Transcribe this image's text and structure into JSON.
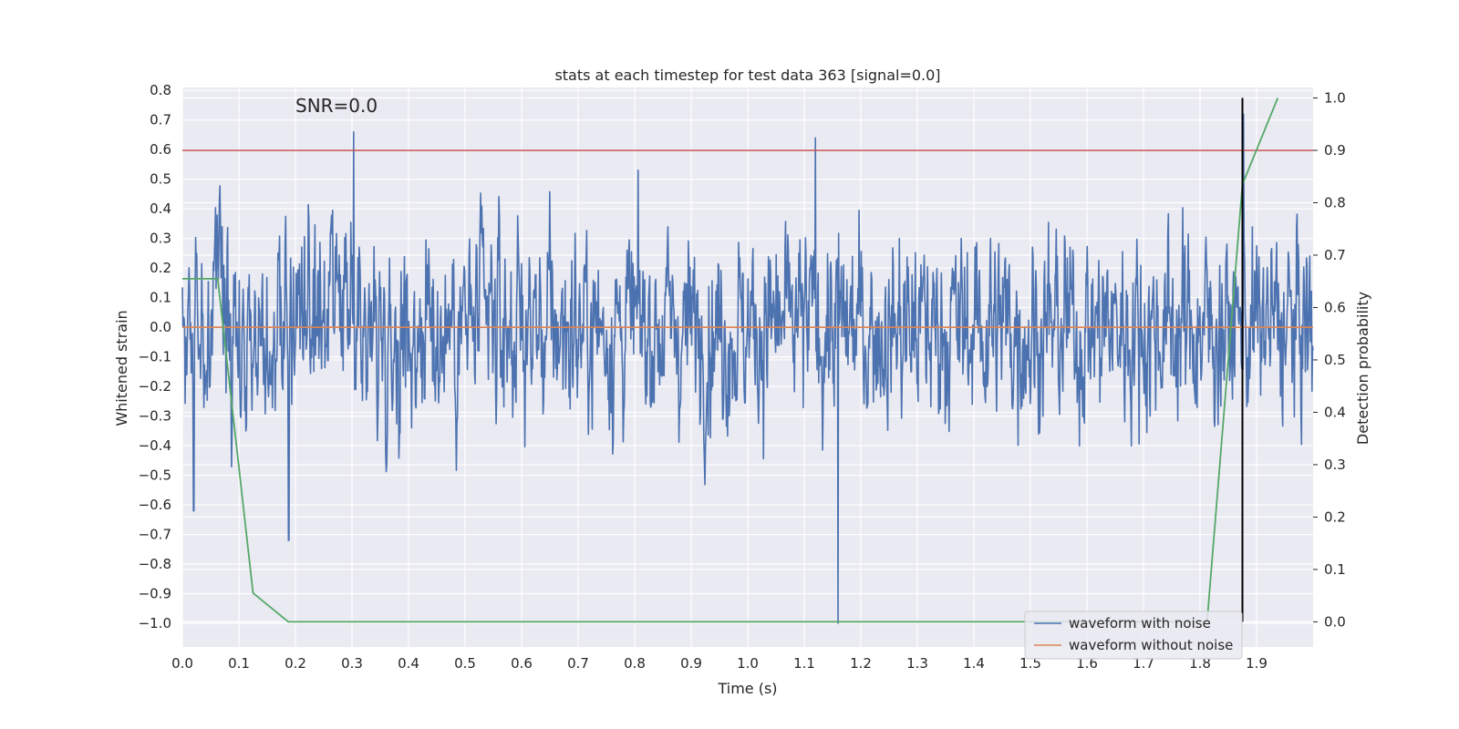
{
  "chart_data": {
    "type": "line",
    "title": "stats at each timestep for test data 363 [signal=0.0]",
    "annotation": "SNR=0.0",
    "xlabel": "Time (s)",
    "ylabel": "Whitened strain",
    "y2label": "Detection probability",
    "xlim": [
      0.0,
      2.0
    ],
    "ylim": [
      -1.08,
      0.81
    ],
    "y2lim": [
      -0.048,
      1.02
    ],
    "xticks": [
      0.0,
      0.1,
      0.2,
      0.3,
      0.4,
      0.5,
      0.6,
      0.7,
      0.8,
      0.9,
      1.0,
      1.1,
      1.2,
      1.3,
      1.4,
      1.5,
      1.6,
      1.7,
      1.8,
      1.9
    ],
    "xtick_labels": [
      "0.0",
      "0.1",
      "0.2",
      "0.3",
      "0.4",
      "0.5",
      "0.6",
      "0.7",
      "0.8",
      "0.9",
      "1.0",
      "1.1",
      "1.2",
      "1.3",
      "1.4",
      "1.5",
      "1.6",
      "1.7",
      "1.8",
      "1.9"
    ],
    "yticks": [
      0.8,
      0.7,
      0.6,
      0.5,
      0.4,
      0.3,
      0.2,
      0.1,
      0.0,
      -0.1,
      -0.2,
      -0.3,
      -0.4,
      -0.5,
      -0.6,
      -0.7,
      -0.8,
      -0.9,
      -1.0
    ],
    "ytick_labels": [
      "0.8",
      "0.7",
      "0.6",
      "0.5",
      "0.4",
      "0.3",
      "0.2",
      "0.1",
      "0.0",
      "−0.1",
      "−0.2",
      "−0.3",
      "−0.4",
      "−0.5",
      "−0.6",
      "−0.7",
      "−0.8",
      "−0.9",
      "−1.0"
    ],
    "y2ticks": [
      1.0,
      0.9,
      0.8,
      0.7,
      0.6,
      0.5,
      0.4,
      0.3,
      0.2,
      0.1,
      0.0
    ],
    "y2tick_labels": [
      "1.0",
      "0.9",
      "0.8",
      "0.7",
      "0.6",
      "0.5",
      "0.4",
      "0.3",
      "0.2",
      "0.1",
      "0.0"
    ],
    "grid": true,
    "legend_position": "lower-right",
    "series": [
      {
        "name": "waveform with noise",
        "color": "#4c72b0",
        "axis": "left",
        "kind": "noise",
        "x_range": [
          0.0,
          2.0
        ],
        "points": 2048,
        "y_min": -1.0,
        "y_max": 0.72,
        "spikes": [
          {
            "x": 1.16,
            "y": -1.0
          },
          {
            "x": 0.188,
            "y": -0.72
          },
          {
            "x": 0.303,
            "y": 0.66
          },
          {
            "x": 1.877,
            "y": 0.72
          },
          {
            "x": 1.12,
            "y": 0.64
          },
          {
            "x": 0.02,
            "y": -0.62
          }
        ]
      },
      {
        "name": "waveform without noise",
        "color": "#dd8452",
        "axis": "left",
        "x": [
          0.0,
          2.0
        ],
        "y": [
          0.0,
          0.0
        ]
      },
      {
        "name": "",
        "color": "#55a868",
        "axis": "right",
        "x": [
          0.0,
          0.0625,
          0.125,
          0.1875,
          1.8125,
          1.875,
          1.9375
        ],
        "y": [
          0.655,
          0.655,
          0.055,
          0.0,
          0.0,
          0.835,
          1.0
        ]
      }
    ],
    "threshold": {
      "axis": "right",
      "y": 0.9,
      "color": "#c44e52"
    },
    "marker_line": {
      "x": 1.875,
      "y_from": 0.0,
      "y_to": 1.0,
      "axis": "right",
      "color": "#000000"
    }
  }
}
